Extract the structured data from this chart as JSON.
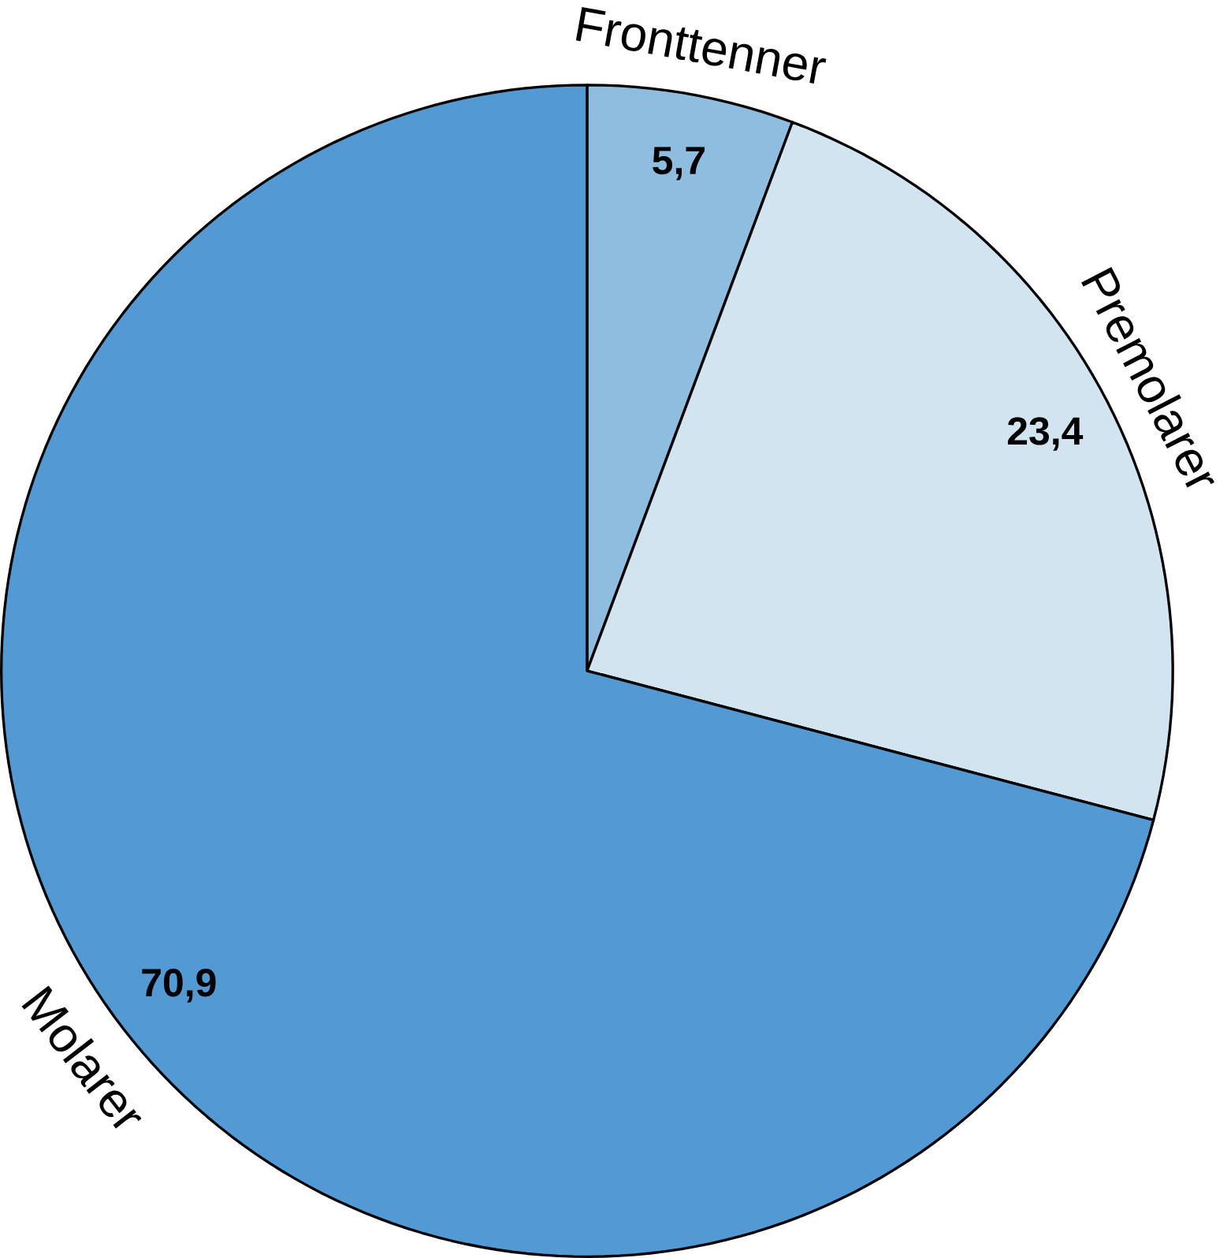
{
  "chart_data": {
    "type": "pie",
    "categories": [
      "Fronttenner",
      "Premolarer",
      "Molarer"
    ],
    "values": [
      5.7,
      23.4,
      70.9
    ],
    "value_labels": [
      "5,7",
      "23,4",
      "70,9"
    ],
    "colors": [
      "#8fbde0",
      "#d3e4f1",
      "#5399d3"
    ]
  }
}
